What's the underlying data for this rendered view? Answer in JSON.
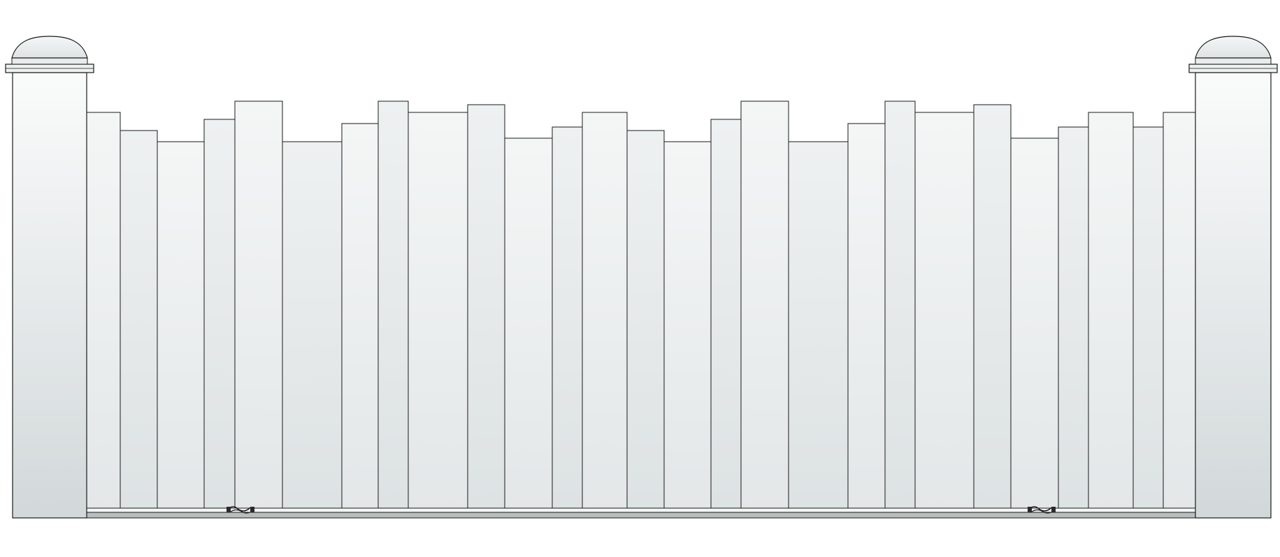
{
  "drawing": {
    "subject": "fence-gate-elevation",
    "colors": {
      "background": "#ffffff",
      "outline": "#1a1a1a",
      "board_light": "#f3f5f5",
      "board_mid": "#e6eaea",
      "board_dark": "#d9dedf",
      "post_light": "#f7f8f8",
      "post_dark": "#cfd5d6",
      "rail": "#b8bcbd"
    },
    "posts": [
      "left-post",
      "right-post"
    ],
    "hinges": [
      "left-hinge",
      "right-hinge"
    ]
  }
}
